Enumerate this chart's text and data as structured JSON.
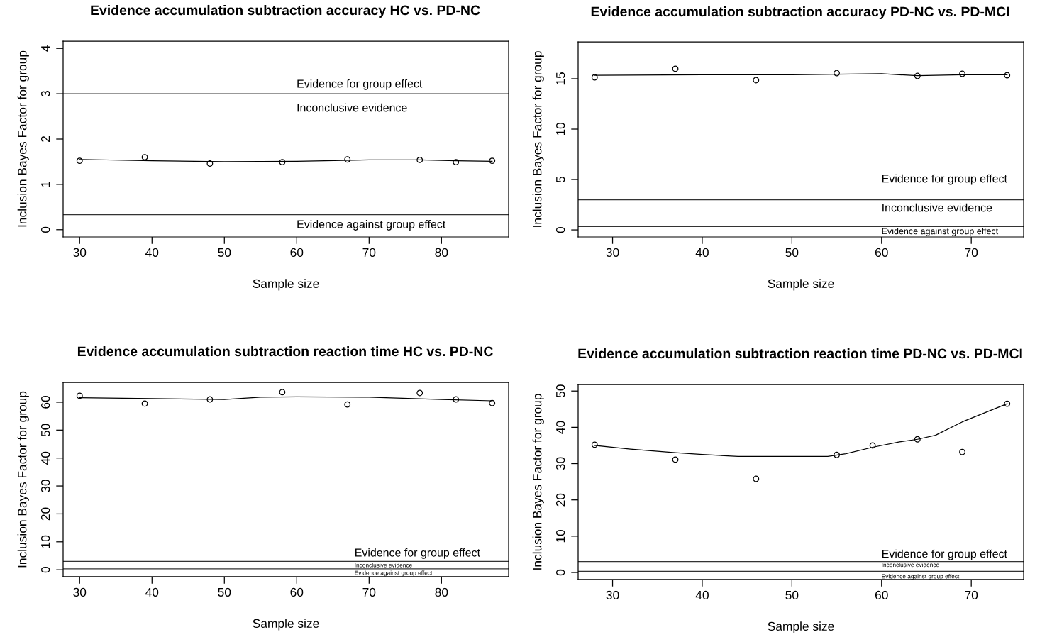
{
  "chart_data": [
    {
      "type": "scatter",
      "title": "Evidence accumulation subtraction accuracy HC vs. PD-NC",
      "xlabel": "Sample size",
      "ylabel": "Inclusion Bayes Factor for group",
      "marker": "circle",
      "xlim": [
        27.72,
        89.28
      ],
      "xticks": [
        30,
        40,
        50,
        60,
        70,
        80
      ],
      "ylim": [
        -0.16,
        4.16
      ],
      "yticks": [
        0,
        1,
        2,
        3,
        4
      ],
      "series": [
        {
          "color": "#000000",
          "x": [
            30,
            39,
            48,
            58,
            67,
            77,
            82,
            87
          ],
          "values": [
            1.52,
            1.6,
            1.46,
            1.49,
            1.55,
            1.54,
            1.49,
            1.52
          ]
        },
        {
          "type": "line",
          "color": "#000000",
          "marker": "none",
          "x": [
            30,
            40,
            50,
            60,
            70,
            77,
            82,
            87
          ],
          "values": [
            1.55,
            1.52,
            1.5,
            1.51,
            1.54,
            1.54,
            1.52,
            1.51
          ]
        }
      ],
      "ref_lines": [
        {
          "axis": "y",
          "value": 3,
          "color": "#333333"
        },
        {
          "axis": "y",
          "value": 0.333,
          "color": "#333333"
        }
      ],
      "annotations": [
        "Evidence for group effect",
        "Inconclusive evidence",
        "Evidence against group effect"
      ]
    },
    {
      "type": "scatter",
      "title": "Evidence accumulation subtraction accuracy PD-NC vs. PD-MCI",
      "xlabel": "Sample size",
      "ylabel": "Inclusion Bayes Factor for group",
      "marker": "circle",
      "xlim": [
        26.16,
        75.84
      ],
      "xticks": [
        30,
        40,
        50,
        60,
        70
      ],
      "ylim": [
        -0.7,
        18.66
      ],
      "yticks": [
        0,
        5,
        10,
        15
      ],
      "series": [
        {
          "color": "#000000",
          "x": [
            28,
            37,
            46,
            55,
            64,
            69,
            74
          ],
          "values": [
            15.14,
            15.99,
            14.86,
            15.56,
            15.28,
            15.49,
            15.35
          ]
        },
        {
          "type": "line",
          "color": "#000000",
          "marker": "none",
          "x": [
            28,
            40,
            50,
            55,
            60,
            64,
            69,
            74
          ],
          "values": [
            15.35,
            15.4,
            15.4,
            15.45,
            15.5,
            15.3,
            15.4,
            15.4
          ]
        }
      ],
      "ref_lines": [
        {
          "axis": "y",
          "value": 3,
          "color": "#333333"
        },
        {
          "axis": "y",
          "value": 0.333,
          "color": "#333333"
        }
      ],
      "annotations": [
        "Evidence for group effect",
        "Inconclusive evidence",
        "Evidence against group effect"
      ]
    },
    {
      "type": "scatter",
      "title": "Evidence accumulation subtraction reaction time HC vs. PD-NC",
      "xlabel": "Sample size",
      "ylabel": "Inclusion Bayes Factor for group",
      "marker": "circle",
      "xlim": [
        27.72,
        89.28
      ],
      "xticks": [
        30,
        40,
        50,
        60,
        70,
        80
      ],
      "ylim": [
        -2.5,
        67.1
      ],
      "yticks": [
        0,
        10,
        20,
        30,
        40,
        50,
        60
      ],
      "series": [
        {
          "color": "#000000",
          "x": [
            30,
            39,
            48,
            58,
            67,
            77,
            82,
            87
          ],
          "values": [
            62.3,
            59.5,
            61.0,
            63.6,
            59.2,
            63.3,
            61.0,
            59.7
          ]
        },
        {
          "type": "line",
          "color": "#000000",
          "marker": "none",
          "x": [
            30,
            40,
            50,
            55,
            60,
            70,
            80,
            87
          ],
          "values": [
            61.6,
            61.3,
            61.0,
            61.8,
            61.9,
            61.8,
            61.0,
            60.5
          ]
        }
      ],
      "ref_lines": [
        {
          "axis": "y",
          "value": 3,
          "color": "#333333"
        },
        {
          "axis": "y",
          "value": 0.333,
          "color": "#333333"
        }
      ],
      "annotations": [
        "Evidence for group effect",
        "Inconclusive evidence",
        "Evidence against group effect"
      ]
    },
    {
      "type": "scatter",
      "title": "Evidence accumulation subtraction reaction time PD-NC vs. PD-MCI",
      "xlabel": "Sample size",
      "ylabel": "Inclusion Bayes Factor for group",
      "marker": "circle",
      "xlim": [
        26.16,
        75.84
      ],
      "xticks": [
        30,
        40,
        50,
        60,
        70
      ],
      "ylim": [
        -1.95,
        51.8
      ],
      "yticks": [
        0,
        10,
        20,
        30,
        40,
        50
      ],
      "series": [
        {
          "color": "#000000",
          "x": [
            28,
            37,
            46,
            55,
            59,
            64,
            69,
            74
          ],
          "values": [
            35.2,
            31.1,
            25.8,
            32.4,
            35.0,
            36.7,
            33.2,
            46.5
          ]
        },
        {
          "type": "line",
          "color": "#000000",
          "marker": "none",
          "x": [
            28,
            32,
            37,
            40,
            44,
            50,
            54,
            56,
            59,
            62,
            64,
            66,
            69,
            74
          ],
          "values": [
            35.0,
            34.0,
            33.0,
            32.5,
            32.0,
            32.0,
            32.0,
            32.7,
            34.5,
            36.0,
            36.7,
            37.8,
            41.5,
            46.5
          ]
        }
      ],
      "ref_lines": [
        {
          "axis": "y",
          "value": 3,
          "color": "#333333"
        },
        {
          "axis": "y",
          "value": 0.333,
          "color": "#333333"
        }
      ],
      "annotations": [
        "Evidence for group effect",
        "Inconclusive evidence",
        "Evidence against group effect"
      ]
    }
  ]
}
